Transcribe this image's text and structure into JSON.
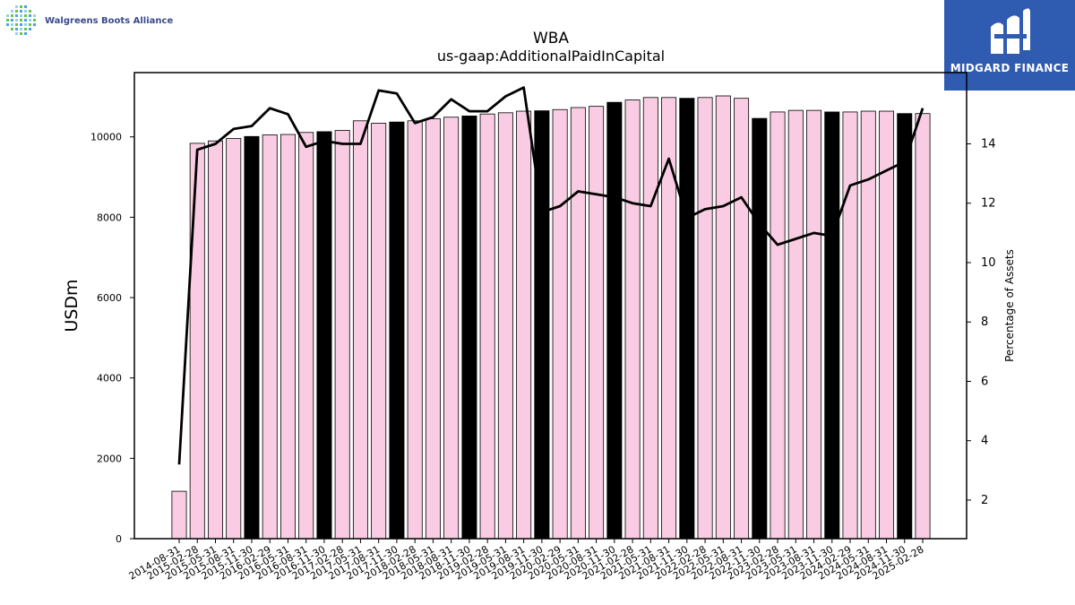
{
  "header": {
    "left_brand": "Walgreens Boots Alliance",
    "right_brand": "MIDGARD FINANCE",
    "colors": {
      "right_bg": "#2f5bb0",
      "right_text": "#ffffff",
      "left_text": "#3a4a8c"
    }
  },
  "chart_data": {
    "type": "bar",
    "title": "WBA",
    "subtitle": "us-gaap:AdditionalPaidInCapital",
    "ylabel": "USDm",
    "y2label": "Percentage of Assets",
    "ylim": [
      0,
      11600
    ],
    "y2lim": [
      0.7,
      16.4
    ],
    "yticks": [
      0,
      2000,
      4000,
      6000,
      8000,
      10000
    ],
    "y2ticks": [
      2,
      4,
      6,
      8,
      10,
      12,
      14
    ],
    "categories": [
      "2014-08-31",
      "2015-02-28",
      "2015-05-31",
      "2015-08-31",
      "2015-11-30",
      "2016-02-29",
      "2016-05-31",
      "2016-08-31",
      "2016-11-30",
      "2017-02-28",
      "2017-05-31",
      "2017-08-31",
      "2017-11-30",
      "2018-02-28",
      "2018-05-31",
      "2018-08-31",
      "2018-11-30",
      "2019-02-28",
      "2019-05-31",
      "2019-08-31",
      "2019-11-30",
      "2020-02-29",
      "2020-05-31",
      "2020-08-31",
      "2020-11-30",
      "2021-02-28",
      "2021-05-31",
      "2021-08-31",
      "2021-11-30",
      "2022-02-28",
      "2022-05-31",
      "2022-08-31",
      "2022-11-30",
      "2023-02-28",
      "2023-05-31",
      "2023-08-31",
      "2023-11-30",
      "2024-02-29",
      "2024-05-31",
      "2024-08-31",
      "2024-11-30",
      "2025-02-28"
    ],
    "series": [
      {
        "kind": "bar",
        "values": [
          1180,
          9840,
          9900,
          9960,
          10010,
          10050,
          10060,
          10110,
          10130,
          10160,
          10400,
          10340,
          10370,
          10400,
          10450,
          10490,
          10520,
          10570,
          10600,
          10640,
          10650,
          10680,
          10730,
          10760,
          10860,
          10920,
          10980,
          10980,
          10960,
          10980,
          11020,
          10960,
          10460,
          10620,
          10660,
          10660,
          10620,
          10620,
          10640,
          10640,
          10580,
          10580
        ],
        "highlight": [
          false,
          false,
          false,
          false,
          true,
          false,
          false,
          false,
          true,
          false,
          false,
          false,
          true,
          false,
          false,
          false,
          true,
          false,
          false,
          false,
          true,
          false,
          false,
          false,
          true,
          false,
          false,
          false,
          true,
          false,
          false,
          false,
          true,
          false,
          false,
          false,
          true,
          false,
          false,
          false,
          true,
          false
        ]
      },
      {
        "kind": "line",
        "axis": "right",
        "values": [
          3.2,
          13.8,
          14.0,
          14.5,
          14.6,
          15.2,
          15.0,
          13.9,
          14.1,
          14.0,
          14.0,
          15.8,
          15.7,
          14.7,
          14.9,
          15.5,
          15.1,
          15.1,
          15.6,
          15.9,
          11.7,
          11.9,
          12.4,
          12.3,
          12.2,
          12.0,
          11.9,
          13.5,
          11.5,
          11.8,
          11.9,
          12.2,
          11.3,
          10.6,
          10.8,
          11.0,
          10.9,
          12.6,
          12.8,
          13.1,
          13.4,
          15.2
        ]
      }
    ],
    "colors": {
      "bar": "#f9cce3",
      "bar_highlight": "#000000",
      "bar_edge": "#000000",
      "line": "#000000"
    },
    "grid": false
  }
}
